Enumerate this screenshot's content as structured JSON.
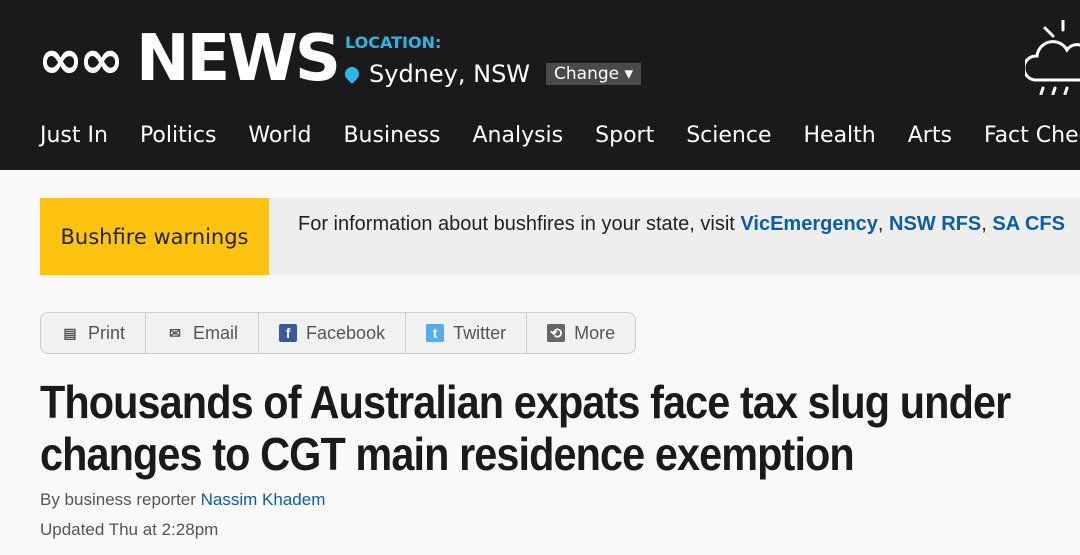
{
  "header": {
    "logo": "ABC NEWS",
    "location_label": "LOCATION:",
    "location": "Sydney, NSW",
    "change_label": "Change ▾",
    "weather_icon": "cloud-rain-sun-icon"
  },
  "nav": [
    "Just In",
    "Politics",
    "World",
    "Business",
    "Analysis",
    "Sport",
    "Science",
    "Health",
    "Arts",
    "Fact Check"
  ],
  "banner": {
    "label": "Bushfire warnings",
    "text": "For information about bushfires in your state, visit ",
    "links": [
      "VicEmergency",
      ", ",
      "NSW RFS",
      ", ",
      "SA CFS"
    ],
    "accent": "#fdc310"
  },
  "share": [
    {
      "label": "Print",
      "icon": "print-icon"
    },
    {
      "label": "Email",
      "icon": "email-icon"
    },
    {
      "label": "Facebook",
      "icon": "facebook-icon"
    },
    {
      "label": "Twitter",
      "icon": "twitter-icon"
    },
    {
      "label": "More",
      "icon": "share-icon"
    }
  ],
  "article": {
    "title": "Thousands of Australian expats face tax slug under changes to CGT main residence exemption",
    "byline_prefix": "By business reporter ",
    "author": "Nassim Khadem",
    "updated": "Updated Thu at 2:28pm"
  }
}
